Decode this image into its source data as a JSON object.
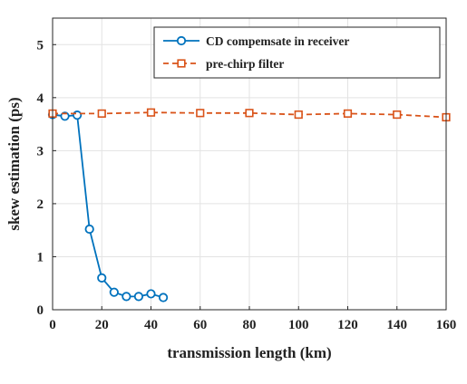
{
  "chart_data": {
    "type": "line",
    "xlabel": "transmission length (km)",
    "ylabel": "skew estimation (ps)",
    "xlim": [
      0,
      160
    ],
    "ylim": [
      0,
      5.5
    ],
    "xticks": [
      0,
      20,
      40,
      60,
      80,
      100,
      120,
      140,
      160
    ],
    "yticks": [
      0,
      1,
      2,
      3,
      4,
      5
    ],
    "grid": true,
    "legend_position": "top-right",
    "series": [
      {
        "name": "CD compemsate in receiver",
        "color": "#0072BD",
        "line_style": "solid",
        "marker": "circle",
        "x": [
          0,
          5,
          10,
          15,
          20,
          25,
          30,
          35,
          40,
          45
        ],
        "y": [
          3.68,
          3.65,
          3.67,
          1.52,
          0.6,
          0.33,
          0.25,
          0.25,
          0.3,
          0.23
        ]
      },
      {
        "name": "pre-chirp filter",
        "color": "#D95319",
        "line_style": "dashed",
        "marker": "square",
        "x": [
          0,
          20,
          40,
          60,
          80,
          100,
          120,
          140,
          160
        ],
        "y": [
          3.7,
          3.7,
          3.72,
          3.71,
          3.71,
          3.68,
          3.7,
          3.68,
          3.63
        ]
      }
    ]
  }
}
